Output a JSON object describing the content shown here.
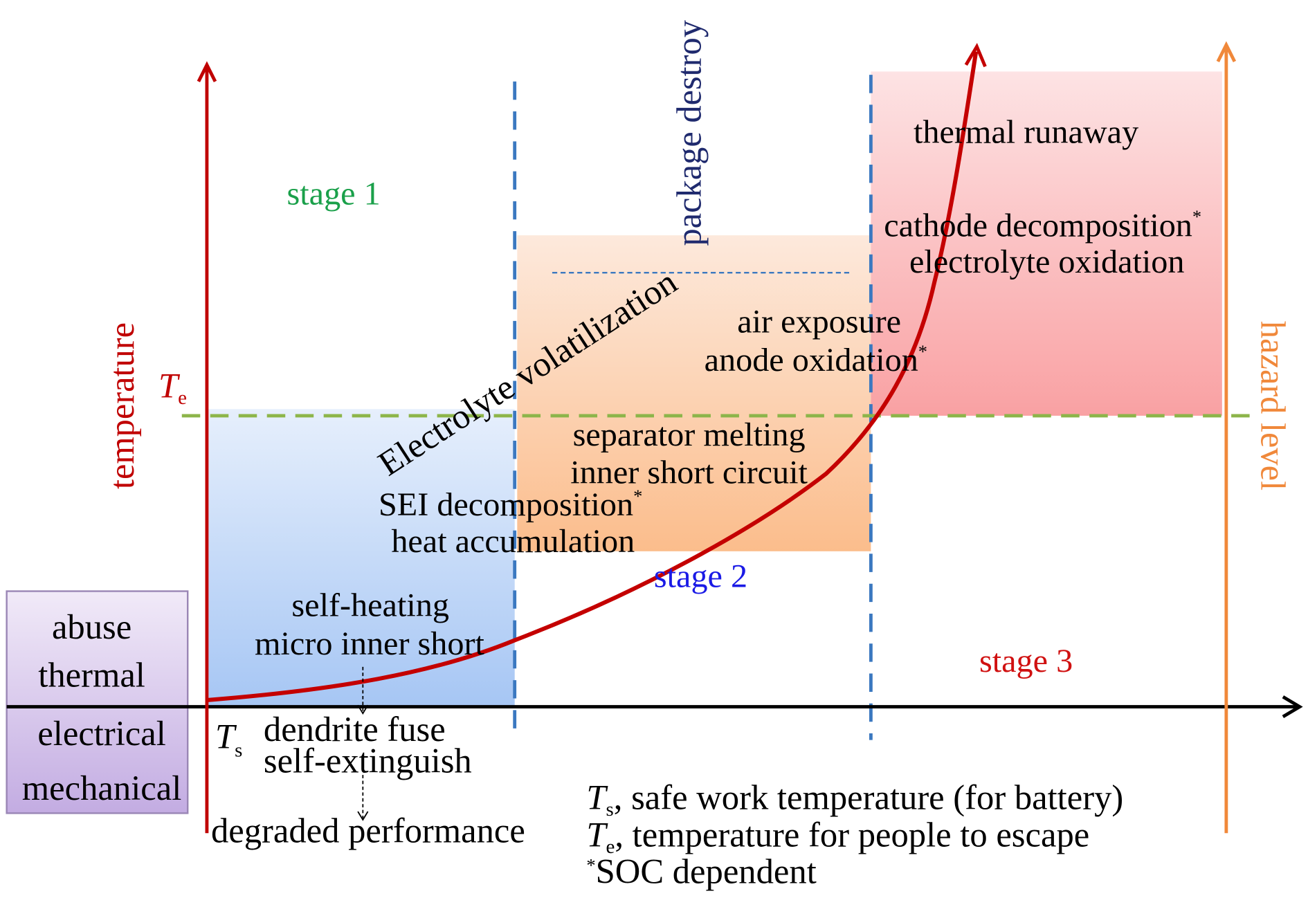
{
  "axes": {
    "y_label": "temperature",
    "right_label": "hazard level",
    "te_symbol": "T",
    "te_sub": "e",
    "ts_symbol": "T",
    "ts_sub": "s"
  },
  "stages": {
    "stage1": "stage 1",
    "stage2": "stage 2",
    "stage3": "stage 3"
  },
  "annotations": {
    "package_destroy": "package destroy",
    "electrolyte_volatilization": "Electrolyte volatilization",
    "thermal_runaway": "thermal runaway",
    "cathode_decomposition": "cathode decomposition",
    "electrolyte_oxidation": "electrolyte oxidation",
    "air_exposure": "air exposure",
    "anode_oxidation": "anode oxidation",
    "separator_melting": "separator melting",
    "inner_short_circuit": "inner short circuit",
    "sei_decomposition": "SEI decomposition",
    "heat_accumulation": "heat accumulation",
    "self_heating": "self-heating",
    "micro_inner_short": "micro inner short",
    "dendrite_fuse": "dendrite fuse",
    "self_extinguish": "self-extinguish",
    "degraded_performance": "degraded performance",
    "asterisk": "*"
  },
  "abuse_box": [
    "abuse",
    "thermal",
    "electrical",
    "mechanical"
  ],
  "legend": {
    "ts_symbol": "T",
    "ts_sub": "s",
    "ts_text": ", safe work temperature (for battery)",
    "te_symbol": "T",
    "te_sub": "e",
    "te_text": ", temperature for people to escape",
    "soc_star": "*",
    "soc_text": "SOC dependent"
  },
  "colors": {
    "temperature_axis": "#c00000",
    "hazard_axis": "#f0883a",
    "stage1": "#1aa04a",
    "stage2": "#1a1ae6",
    "stage3": "#d01010",
    "package_destroy": "#1f2a6e",
    "te_line": "#8db54a",
    "stage_divider": "#3b78c0"
  }
}
